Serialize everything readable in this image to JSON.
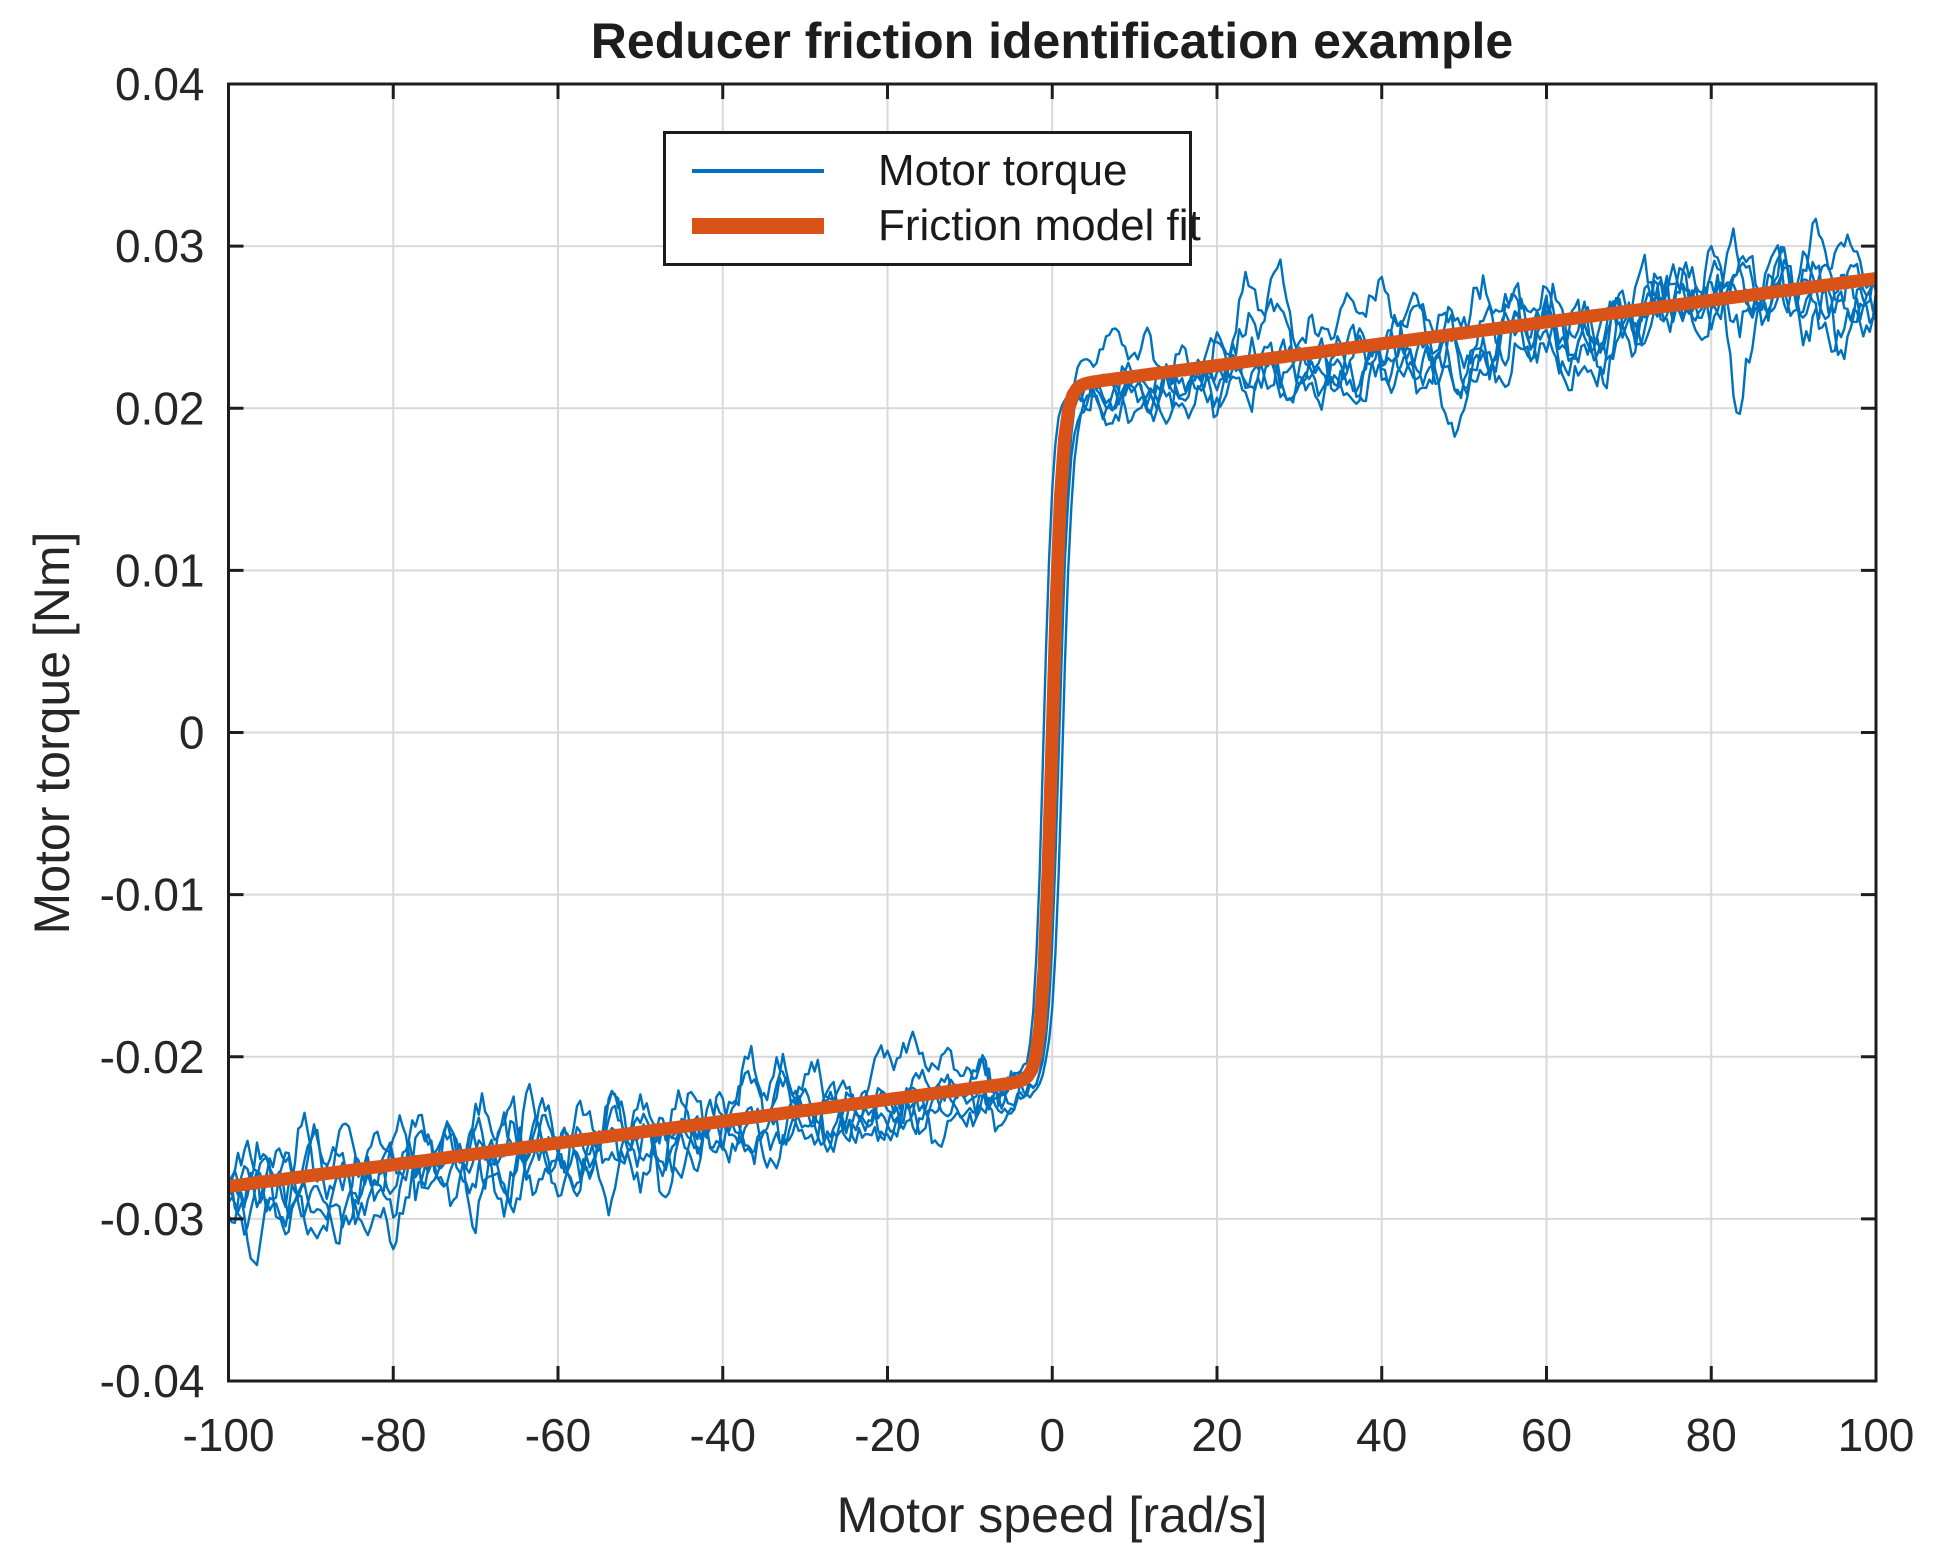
{
  "chart_data": {
    "type": "line",
    "title": "Reducer friction identification example",
    "xlabel": "Motor speed [rad/s]",
    "ylabel": "Motor torque [Nm]",
    "xlim": [
      -100,
      100
    ],
    "ylim": [
      -0.04,
      0.04
    ],
    "xticks": [
      -100,
      -80,
      -60,
      -40,
      -20,
      0,
      20,
      40,
      60,
      80,
      100
    ],
    "xtick_labels": [
      "-100",
      "-80",
      "-60",
      "-40",
      "-20",
      "0",
      "20",
      "40",
      "60",
      "80",
      "100"
    ],
    "yticks": [
      -0.04,
      -0.03,
      -0.02,
      -0.01,
      0,
      0.01,
      0.02,
      0.03,
      0.04
    ],
    "ytick_labels": [
      "-0.04",
      "-0.03",
      "-0.02",
      "-0.01",
      "0",
      "0.01",
      "0.02",
      "0.03",
      "0.04"
    ],
    "grid": true,
    "grid_color": "#d9d9d9",
    "axis_color": "#1d1d1d",
    "tick_label_color": "#262626",
    "legend": {
      "position": "north-left",
      "border_color": "#1c1c1c"
    },
    "series": [
      {
        "name": "Motor torque",
        "color": "#0072BD",
        "line_width": 2.4,
        "kind": "noisy-measurement",
        "description": "Multiple overlapping experimental speed sweeps; torque plateaus near ±0.021 Nm close to zero speed and grows to about ±0.028 Nm at ±100 rad/s, with noise band of roughly ±0.003 Nm (extremes near -0.0335 and +0.0338 Nm).",
        "noise": {
          "trace_count": 6,
          "offset_spread_nm": 0.0022,
          "lf_amp_nm": 0.0012,
          "lf_freq_rad": 1.5,
          "lf2_amp_nm": 0.0011,
          "lf2_freq_rad": 0.35,
          "walk_step_nm": 0.0015,
          "walk_decay": 0.9,
          "hf_amp_nm": 0.0005,
          "bump_amp_min_nm": 0.002,
          "bump_amp_max_nm": 0.0045,
          "hysteresis_shift_rad_s": 3
        }
      },
      {
        "name": "Friction model fit",
        "color": "#D95319",
        "line_width": 13,
        "kind": "model-fit",
        "model": {
          "coulomb_torque_nm": 0.0213,
          "viscous_coeff_nm_per_rad_s": 6.7e-05,
          "transition_speed_rad_s": 1.2
        },
        "key_points": [
          [
            -100,
            -0.028
          ],
          [
            -3,
            -0.0213
          ],
          [
            0,
            0
          ],
          [
            3,
            0.0213
          ],
          [
            100,
            0.028
          ]
        ]
      }
    ]
  }
}
